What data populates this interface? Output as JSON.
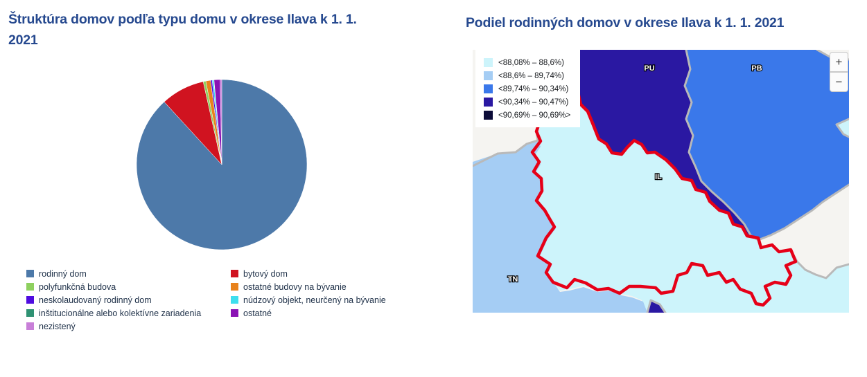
{
  "title_color": "#26498f",
  "left_chart": {
    "title": "Štruktúra domov podľa typu domu v okrese Ilava k 1. 1. 2021"
  },
  "right_map": {
    "title": "Podiel rodinných domov v okrese Ilava k 1. 1. 2021",
    "zoom_in_label": "+",
    "zoom_out_label": "−",
    "outside_color": "#f5f4f1",
    "border_color": "#b9b9b9",
    "district_border_color": "#e60018",
    "regions": [
      {
        "code": "PU",
        "class_index": 3
      },
      {
        "code": "PB",
        "class_index": 2
      },
      {
        "code": "IL",
        "class_index": 0,
        "highlighted": true
      },
      {
        "code": "TN",
        "class_index": 1
      }
    ]
  },
  "chart_data": [
    {
      "type": "pie",
      "title": "Štruktúra domov podľa typu domu v okrese Ilava k 1. 1. 2021",
      "units": "%",
      "categories": [
        "rodinný dom",
        "bytový dom",
        "polyfunkčná budova",
        "ostatné budovy na bývanie",
        "neskolaudovaný rodinný dom",
        "núdzový objekt, neurčený na bývanie",
        "inštitucionálne alebo kolektívne zariadenia",
        "ostatné",
        "nezistený"
      ],
      "values": [
        88.2,
        8.3,
        0.5,
        0.9,
        0.3,
        0.3,
        0.05,
        1.15,
        0.3
      ],
      "colors": [
        "#4d79a9",
        "#d01320",
        "#8ed05f",
        "#e8821c",
        "#4f0ce0",
        "#3edeee",
        "#2f9273",
        "#8a12b4",
        "#c87fd8"
      ],
      "start_angle": "12-oclock",
      "direction": "clockwise",
      "legend_position": "bottom"
    },
    {
      "type": "choropleth",
      "title": "Podiel rodinných domov v okrese Ilava k 1. 1. 2021",
      "legend_position": "top-left",
      "classes": [
        {
          "label": "<88,08% – 88,6%)",
          "color": "#cdf4fb"
        },
        {
          "label": "<88,6% – 89,74%)",
          "color": "#a5cdf4"
        },
        {
          "label": "<89,74% – 90,34%)",
          "color": "#3a78ea"
        },
        {
          "label": "<90,34% – 90,47%)",
          "color": "#2a18a2"
        },
        {
          "label": "<90,69% – 90,69%>",
          "color": "#0c0c38"
        }
      ],
      "regions": [
        {
          "code": "PU",
          "class_label": "<90,34% – 90,47%)"
        },
        {
          "code": "PB",
          "class_label": "<89,74% – 90,34%)"
        },
        {
          "code": "IL",
          "class_label": "<88,08% – 88,6%)"
        },
        {
          "code": "TN",
          "class_label": "<88,6% – 89,74%)"
        }
      ]
    }
  ]
}
